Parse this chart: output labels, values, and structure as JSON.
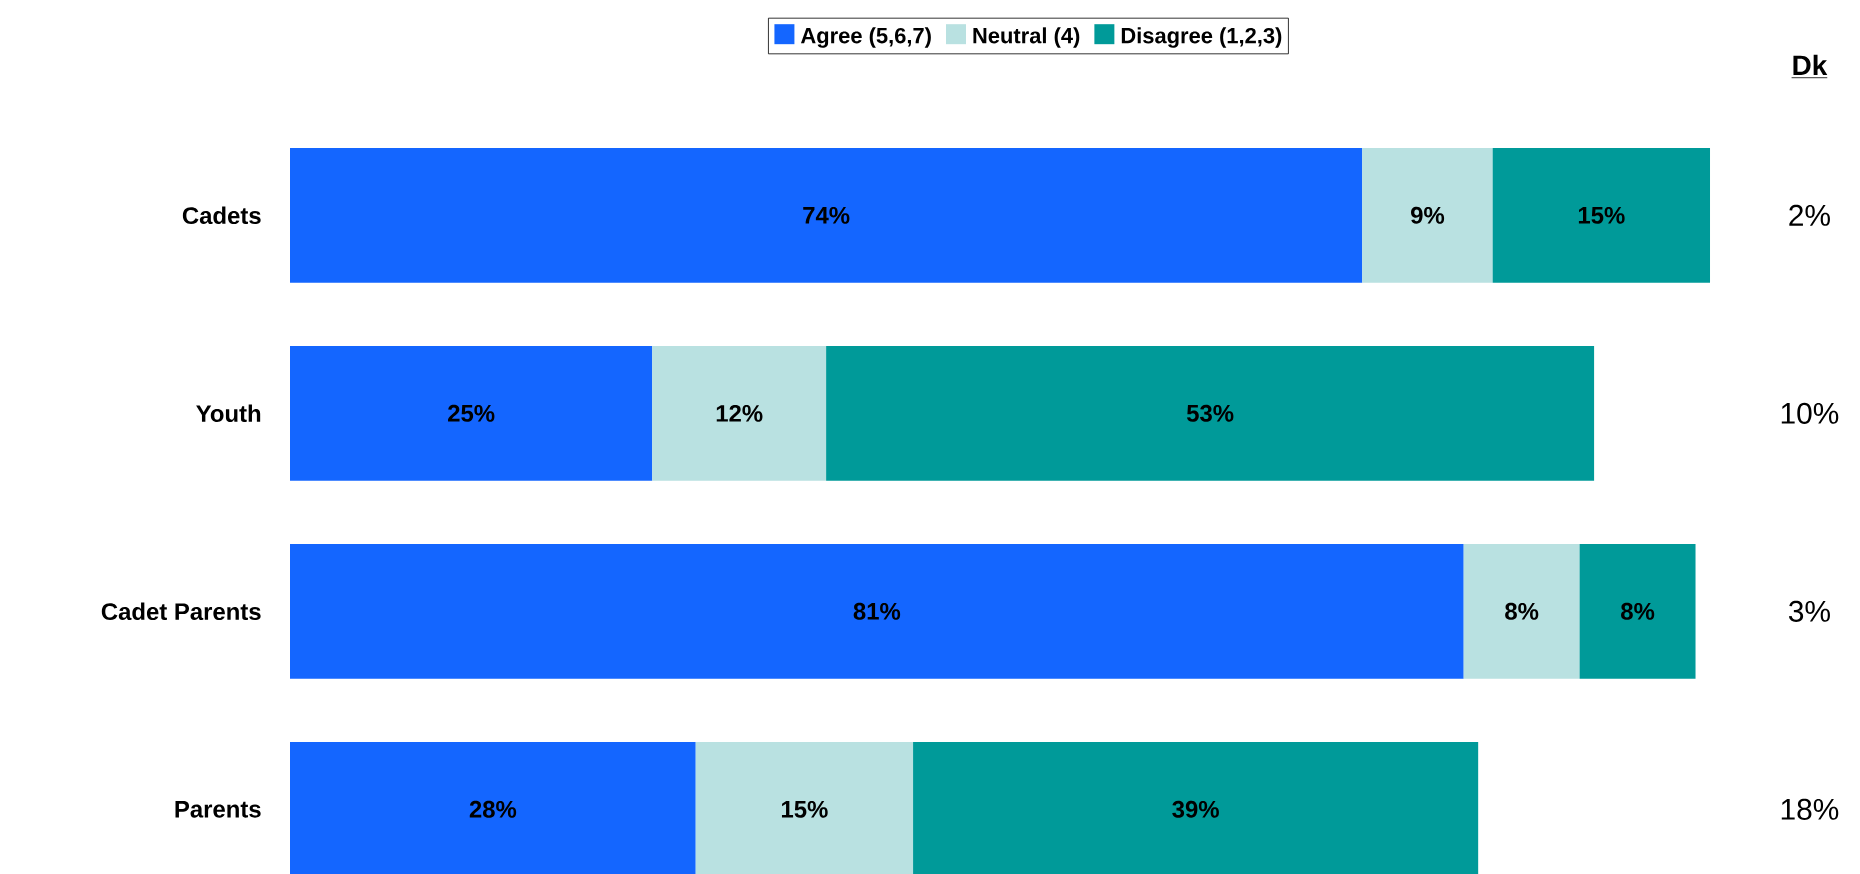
{
  "chart_data": {
    "type": "bar",
    "orientation": "horizontal",
    "stacked": true,
    "data_labels": false,
    "legend": "top",
    "categories": [
      "Cadets",
      "Youth",
      "Cadet Parents",
      "Parents"
    ],
    "series": [
      {
        "name": "Agree (5,6,7)",
        "color": "#1466ff",
        "values": [
          74,
          25,
          81,
          28
        ],
        "value_labels": [
          "74%",
          "25%",
          "81%",
          "28%"
        ]
      },
      {
        "name": "Neutral (4)",
        "color": "#b9e1e1",
        "values": [
          9,
          12,
          8,
          15
        ],
        "value_labels": [
          "9%",
          "12%",
          "8%",
          "15%"
        ]
      },
      {
        "name": "Disagree (1,2,3)",
        "color": "#009a99",
        "values": [
          15,
          53,
          8,
          39
        ],
        "value_labels": [
          "15%",
          "53%",
          "8%",
          "39%"
        ]
      }
    ],
    "annotations": [
      "Dk",
      "2%",
      "10%",
      "3%",
      "18%"
    ]
  }
}
